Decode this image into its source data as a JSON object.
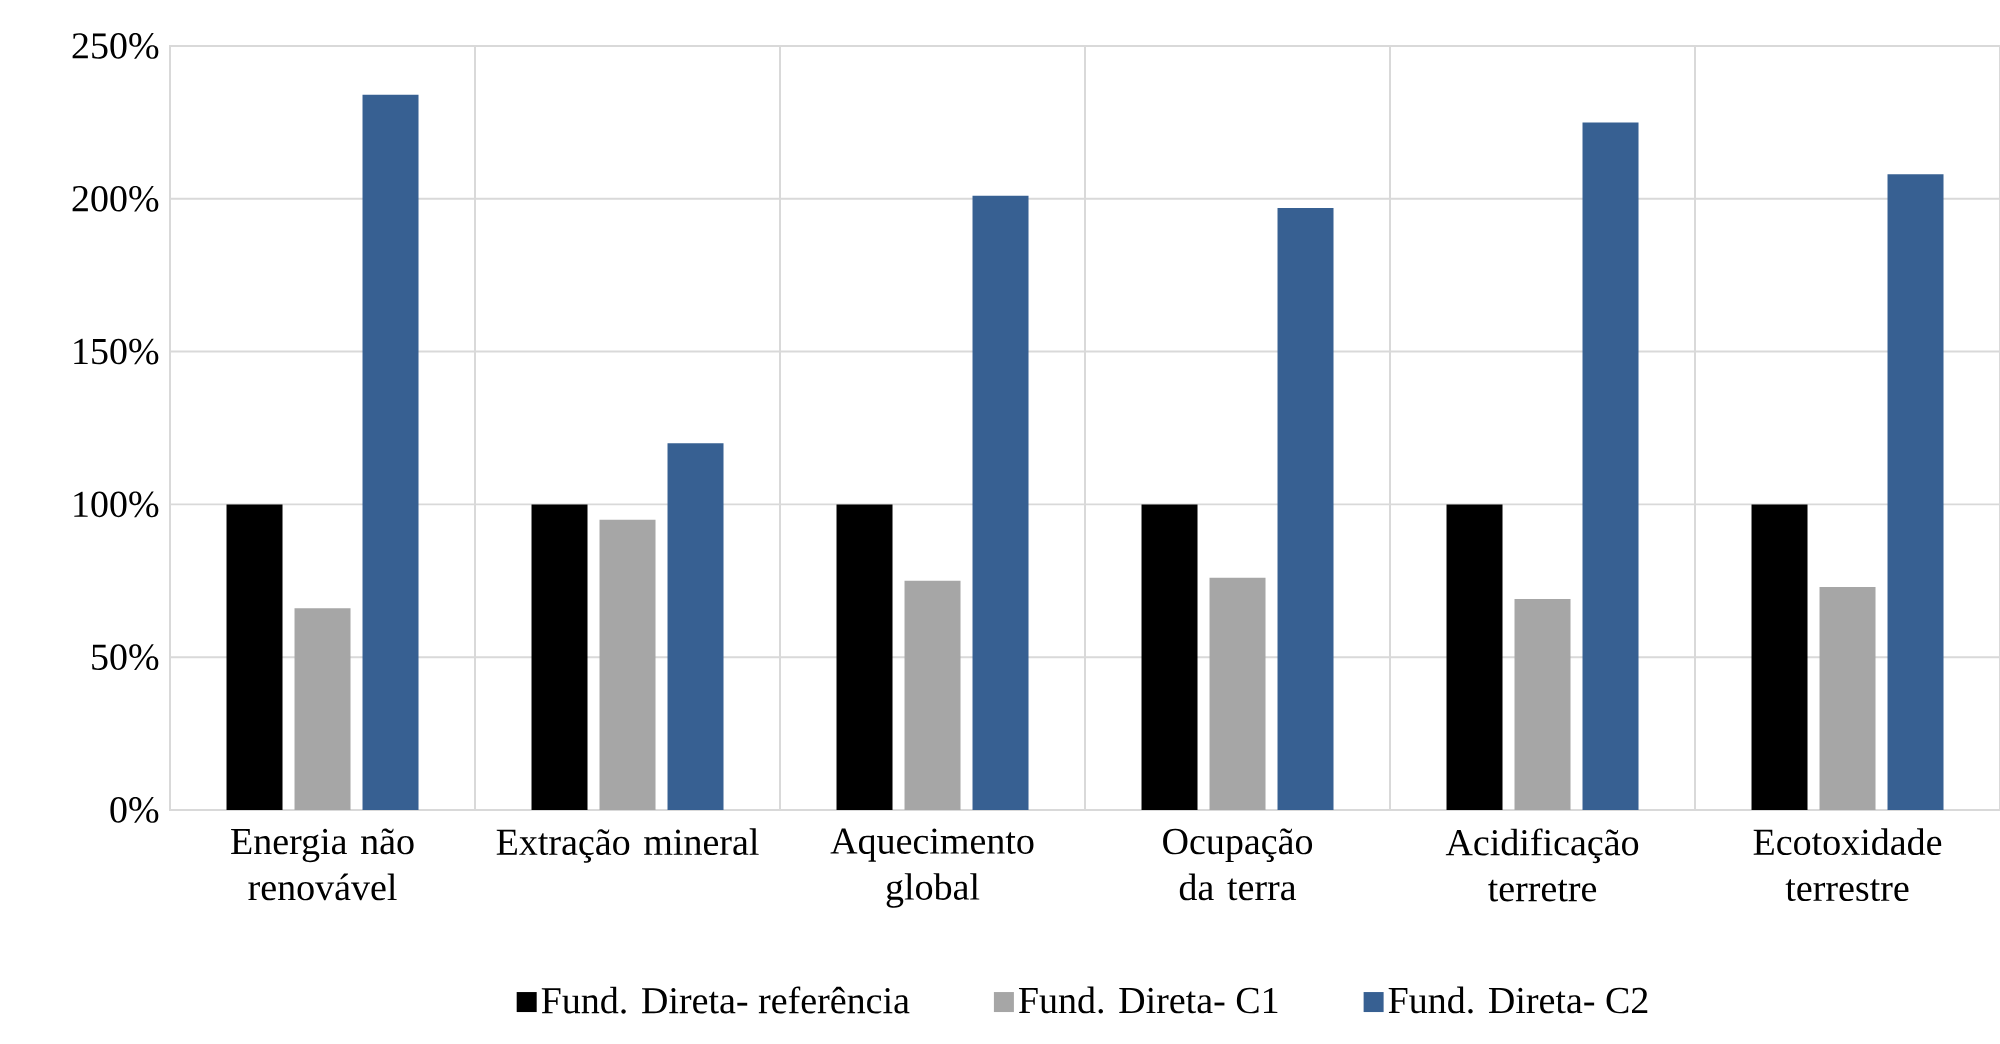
{
  "chart_data": {
    "type": "bar",
    "categories": [
      "Energia não renovável",
      "Extração mineral",
      "Aquecimento global",
      "Ocupação da terra",
      "Acidificação terretre",
      "Ecotoxidade terrestre"
    ],
    "series": [
      {
        "name": "Fund. Direta-  referência",
        "color": "#000000",
        "values": [
          100,
          100,
          100,
          100,
          100,
          100
        ]
      },
      {
        "name": "Fund. Direta- C1",
        "color": "#a6a6a6",
        "values": [
          66,
          95,
          75,
          76,
          69,
          73
        ]
      },
      {
        "name": "Fund. Direta- C2",
        "color": "#376092",
        "values": [
          234,
          120,
          201,
          197,
          225,
          208
        ]
      }
    ],
    "ylim": [
      0,
      250
    ],
    "yticks": [
      {
        "value": 0,
        "label": "0%"
      },
      {
        "value": 50,
        "label": "50%"
      },
      {
        "value": 100,
        "label": "100%"
      },
      {
        "value": 150,
        "label": "150%"
      },
      {
        "value": 200,
        "label": "200%"
      },
      {
        "value": 250,
        "label": "250%"
      }
    ],
    "grid": true,
    "legend": "bottom"
  }
}
